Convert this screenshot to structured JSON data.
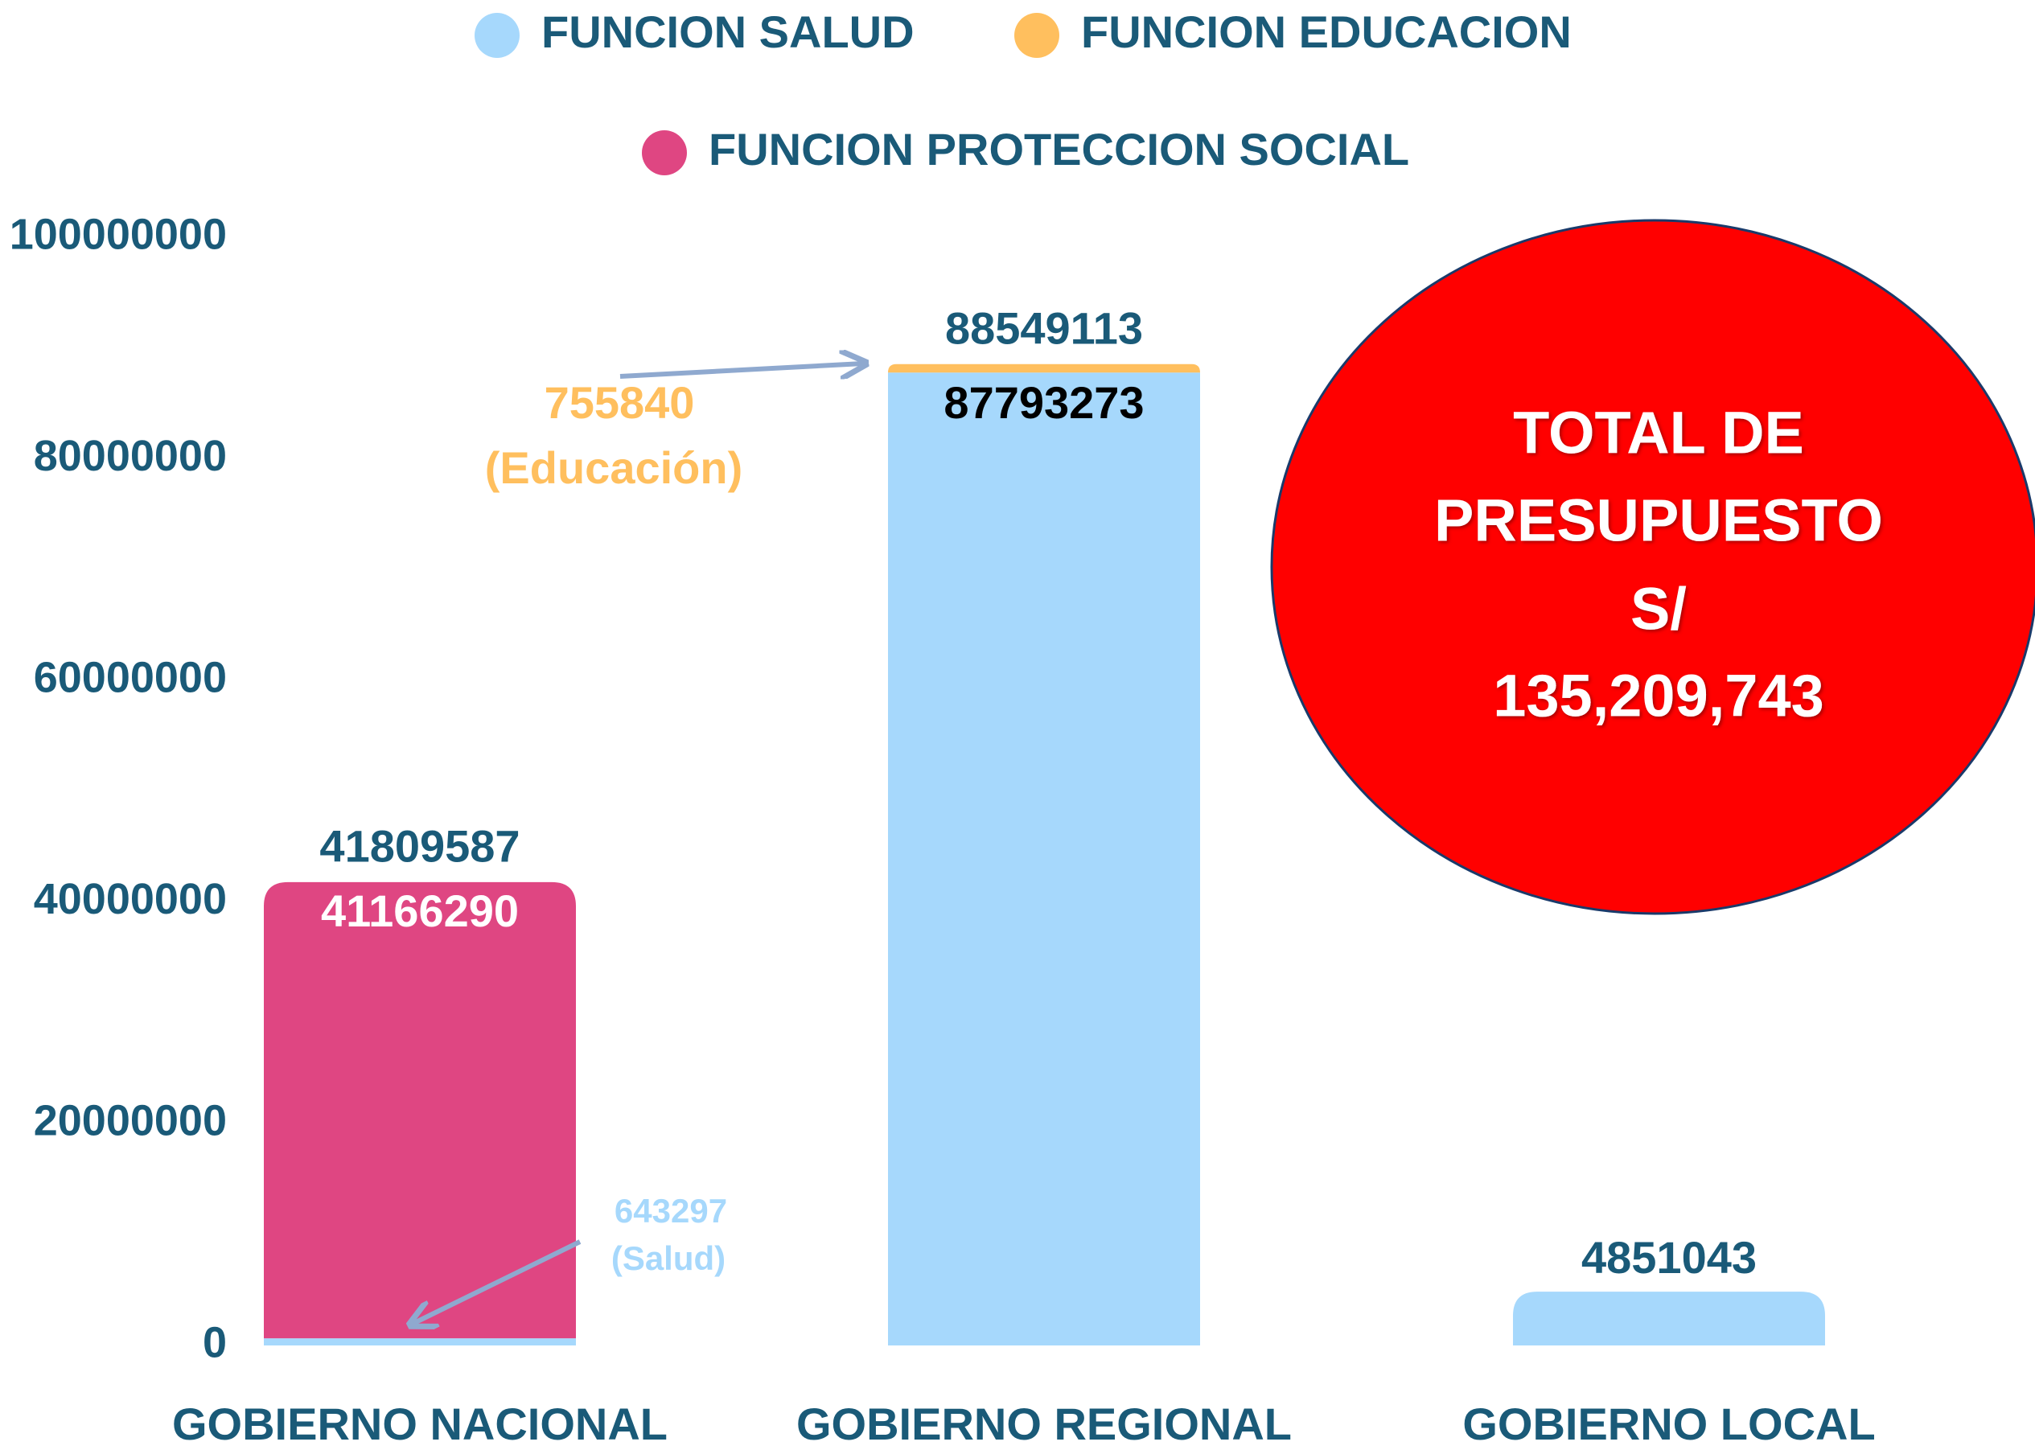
{
  "chart_data": {
    "type": "bar",
    "stacked": true,
    "categories": [
      "GOBIERNO NACIONAL",
      "GOBIERNO REGIONAL",
      "GOBIERNO LOCAL"
    ],
    "series": [
      {
        "name": "FUNCION SALUD",
        "color": "#a6d8fc",
        "values": [
          643297,
          87793273,
          4851043
        ]
      },
      {
        "name": "FUNCION EDUCACION",
        "color": "#ffbf5e",
        "values": [
          null,
          755840,
          null
        ]
      },
      {
        "name": "FUNCION PROTECCION SOCIAL",
        "color": "#df4682",
        "values": [
          41166290,
          null,
          null
        ]
      }
    ],
    "totals": [
      41809587,
      88549113,
      null
    ],
    "ylim": [
      0,
      100000000
    ],
    "yticks": [
      0,
      20000000,
      40000000,
      60000000,
      80000000,
      100000000
    ],
    "grid": false,
    "legend": "top",
    "annotations": [
      "(Educación)",
      "(Salud)"
    ],
    "callout": [
      "TOTAL DE",
      "PRESUPUESTO",
      "S/",
      "135,209,743"
    ]
  }
}
